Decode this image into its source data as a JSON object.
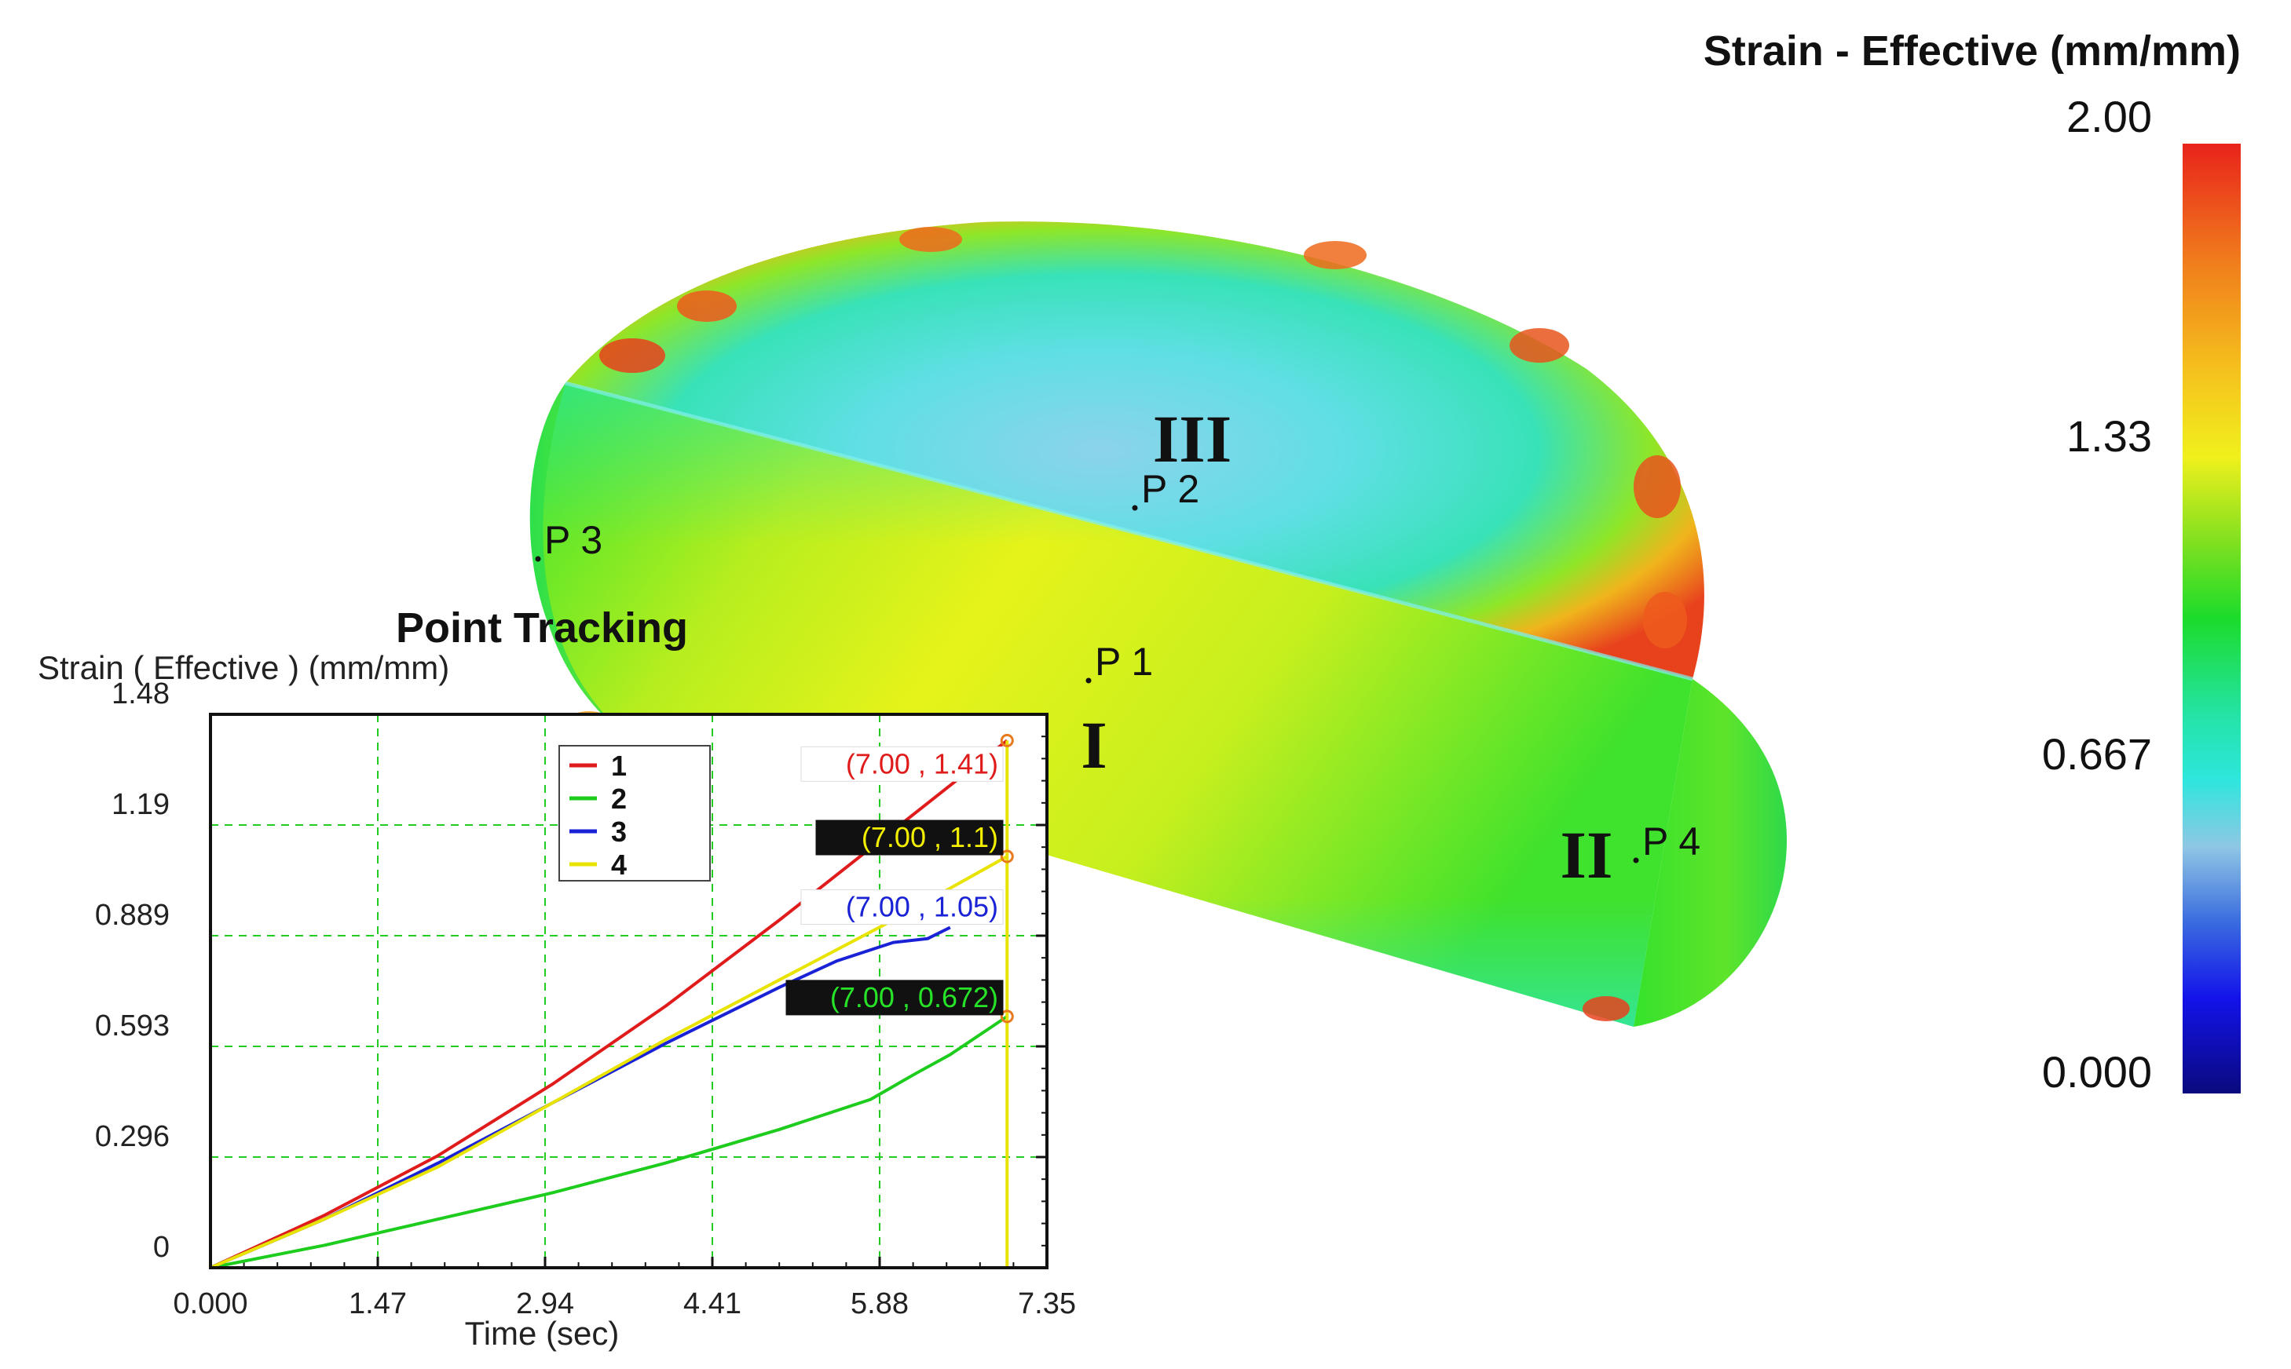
{
  "colorbar": {
    "title": "Strain - Effective (mm/mm)",
    "ticks": [
      "2.00",
      "1.33",
      "0.667",
      "0.000"
    ],
    "range": [
      0.0,
      2.0
    ],
    "colors": [
      "#e8231b",
      "#f59a1a",
      "#f2f01d",
      "#6fe020",
      "#1bdc2b",
      "#26e6c8",
      "#8fc7e4",
      "#3a6bdf",
      "#1313ea",
      "#0a0a7e"
    ]
  },
  "model": {
    "region_labels": [
      "III",
      "I",
      "II"
    ],
    "point_labels": [
      "P 2",
      "P 3",
      "P 1",
      "P 4"
    ],
    "colors": {
      "hot": "#e8421d",
      "warm": "#f5a21c",
      "yellow": "#e4f21a",
      "green": "#2fe02b",
      "cyan": "#3de0dc",
      "lightblue": "#7fd0e8"
    }
  },
  "chart_data": {
    "type": "line",
    "title": "Point Tracking",
    "ylabel": "Strain ( Effective )  (mm/mm)",
    "xlabel": "Time (sec)",
    "xlim": [
      0,
      7.35
    ],
    "ylim": [
      0,
      1.48
    ],
    "xticks": [
      "0.000",
      "1.47",
      "2.94",
      "4.41",
      "5.88",
      "7.35"
    ],
    "yticks": [
      "1.48",
      "1.19",
      "0.889",
      "0.593",
      "0.296",
      "0"
    ],
    "grid": true,
    "legend_position": "top-center",
    "series": [
      {
        "name": "1",
        "color": "#e01b1b",
        "x": [
          0,
          1.0,
          2.0,
          3.0,
          4.0,
          5.0,
          6.0,
          7.0
        ],
        "y": [
          0,
          0.14,
          0.3,
          0.49,
          0.7,
          0.93,
          1.17,
          1.41
        ]
      },
      {
        "name": "2",
        "color": "#1dcc1d",
        "x": [
          0,
          1.0,
          2.0,
          3.0,
          4.0,
          5.0,
          5.8,
          6.2,
          6.5,
          7.0
        ],
        "y": [
          0,
          0.06,
          0.13,
          0.2,
          0.28,
          0.37,
          0.45,
          0.52,
          0.57,
          0.672
        ]
      },
      {
        "name": "3",
        "color": "#1a22d6",
        "x": [
          0,
          1.0,
          2.0,
          3.0,
          4.0,
          5.0,
          5.5,
          6.0,
          6.3,
          6.5
        ],
        "y": [
          0,
          0.13,
          0.28,
          0.44,
          0.6,
          0.75,
          0.82,
          0.87,
          0.88,
          0.91
        ]
      },
      {
        "name": "4",
        "color": "#e8e300",
        "x": [
          0,
          1.0,
          2.0,
          3.0,
          4.0,
          5.0,
          6.0,
          7.0
        ],
        "y": [
          0,
          0.13,
          0.27,
          0.44,
          0.61,
          0.77,
          0.93,
          1.1
        ]
      }
    ],
    "marker_x": 7.0,
    "annotations": [
      {
        "series": "1",
        "text": "(7.00 , 1.41)",
        "style": "light",
        "color": "#e01b1b"
      },
      {
        "series": "4",
        "text": "(7.00 , 1.1)",
        "style": "dark",
        "color": "#f2ee00"
      },
      {
        "series": "3",
        "text": "(7.00 , 1.05)",
        "style": "light",
        "color": "#1a22d6"
      },
      {
        "series": "2",
        "text": "(7.00 , 0.672)",
        "style": "dark",
        "color": "#27e327"
      }
    ]
  }
}
